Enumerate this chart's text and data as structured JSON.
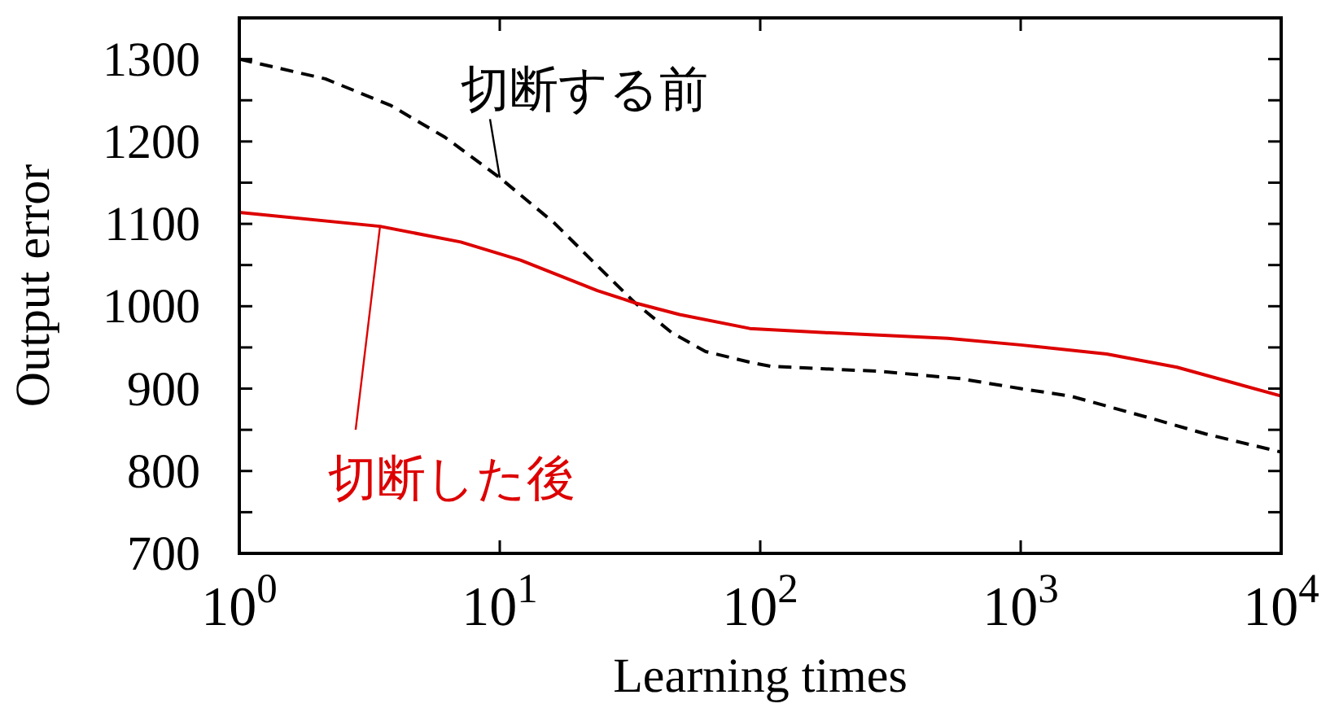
{
  "chart_data": {
    "type": "line",
    "xlabel": "Learning times",
    "ylabel": "Output error",
    "log": "x",
    "xlim": [
      1,
      10000
    ],
    "ylim": [
      700,
      1350
    ],
    "xticks": [
      {
        "value": 1,
        "label": "10$^{0}$"
      },
      {
        "value": 10,
        "label": "10$^{1}$"
      },
      {
        "value": 100,
        "label": "10$^{2}$"
      },
      {
        "value": 1000,
        "label": "10$^{3}$"
      },
      {
        "value": 10000,
        "label": "10$^{4}$"
      }
    ],
    "yticks": [
      700,
      {
        "value": 750,
        "label": null
      },
      800,
      {
        "value": 850,
        "label": null
      },
      900,
      {
        "value": 950,
        "label": null
      },
      1000,
      {
        "value": 1050,
        "label": null
      },
      1100,
      {
        "value": 1150,
        "label": null
      },
      1200,
      {
        "value": 1250,
        "label": null
      },
      1300
    ],
    "grid": false,
    "series": [
      {
        "name": "切断する前",
        "color": "#000000",
        "line_style": "dashed",
        "x": [
          1,
          2.14,
          3.8,
          6.17,
          10,
          16.2,
          23.7,
          33.1,
          45.7,
          61.7,
          91.2,
          110,
          288,
          589,
          1000,
          1549,
          3162,
          5129,
          10000
        ],
        "values": [
          1300,
          1276,
          1244,
          1205,
          1156,
          1101,
          1049,
          1004,
          968,
          945,
          932,
          927,
          921,
          912,
          900,
          891,
          864,
          845,
          823
        ]
      },
      {
        "name": "切断した後",
        "color": "#dd0000",
        "line_style": "solid",
        "x": [
          1,
          3.47,
          7.08,
          12,
          23.7,
          33.1,
          49,
          91.2,
          178,
          525,
          1000,
          2138,
          3981,
          10000
        ],
        "values": [
          1114,
          1097,
          1078,
          1056,
          1019,
          1004,
          990,
          973,
          968,
          961,
          953,
          942,
          926,
          891
        ]
      }
    ]
  }
}
